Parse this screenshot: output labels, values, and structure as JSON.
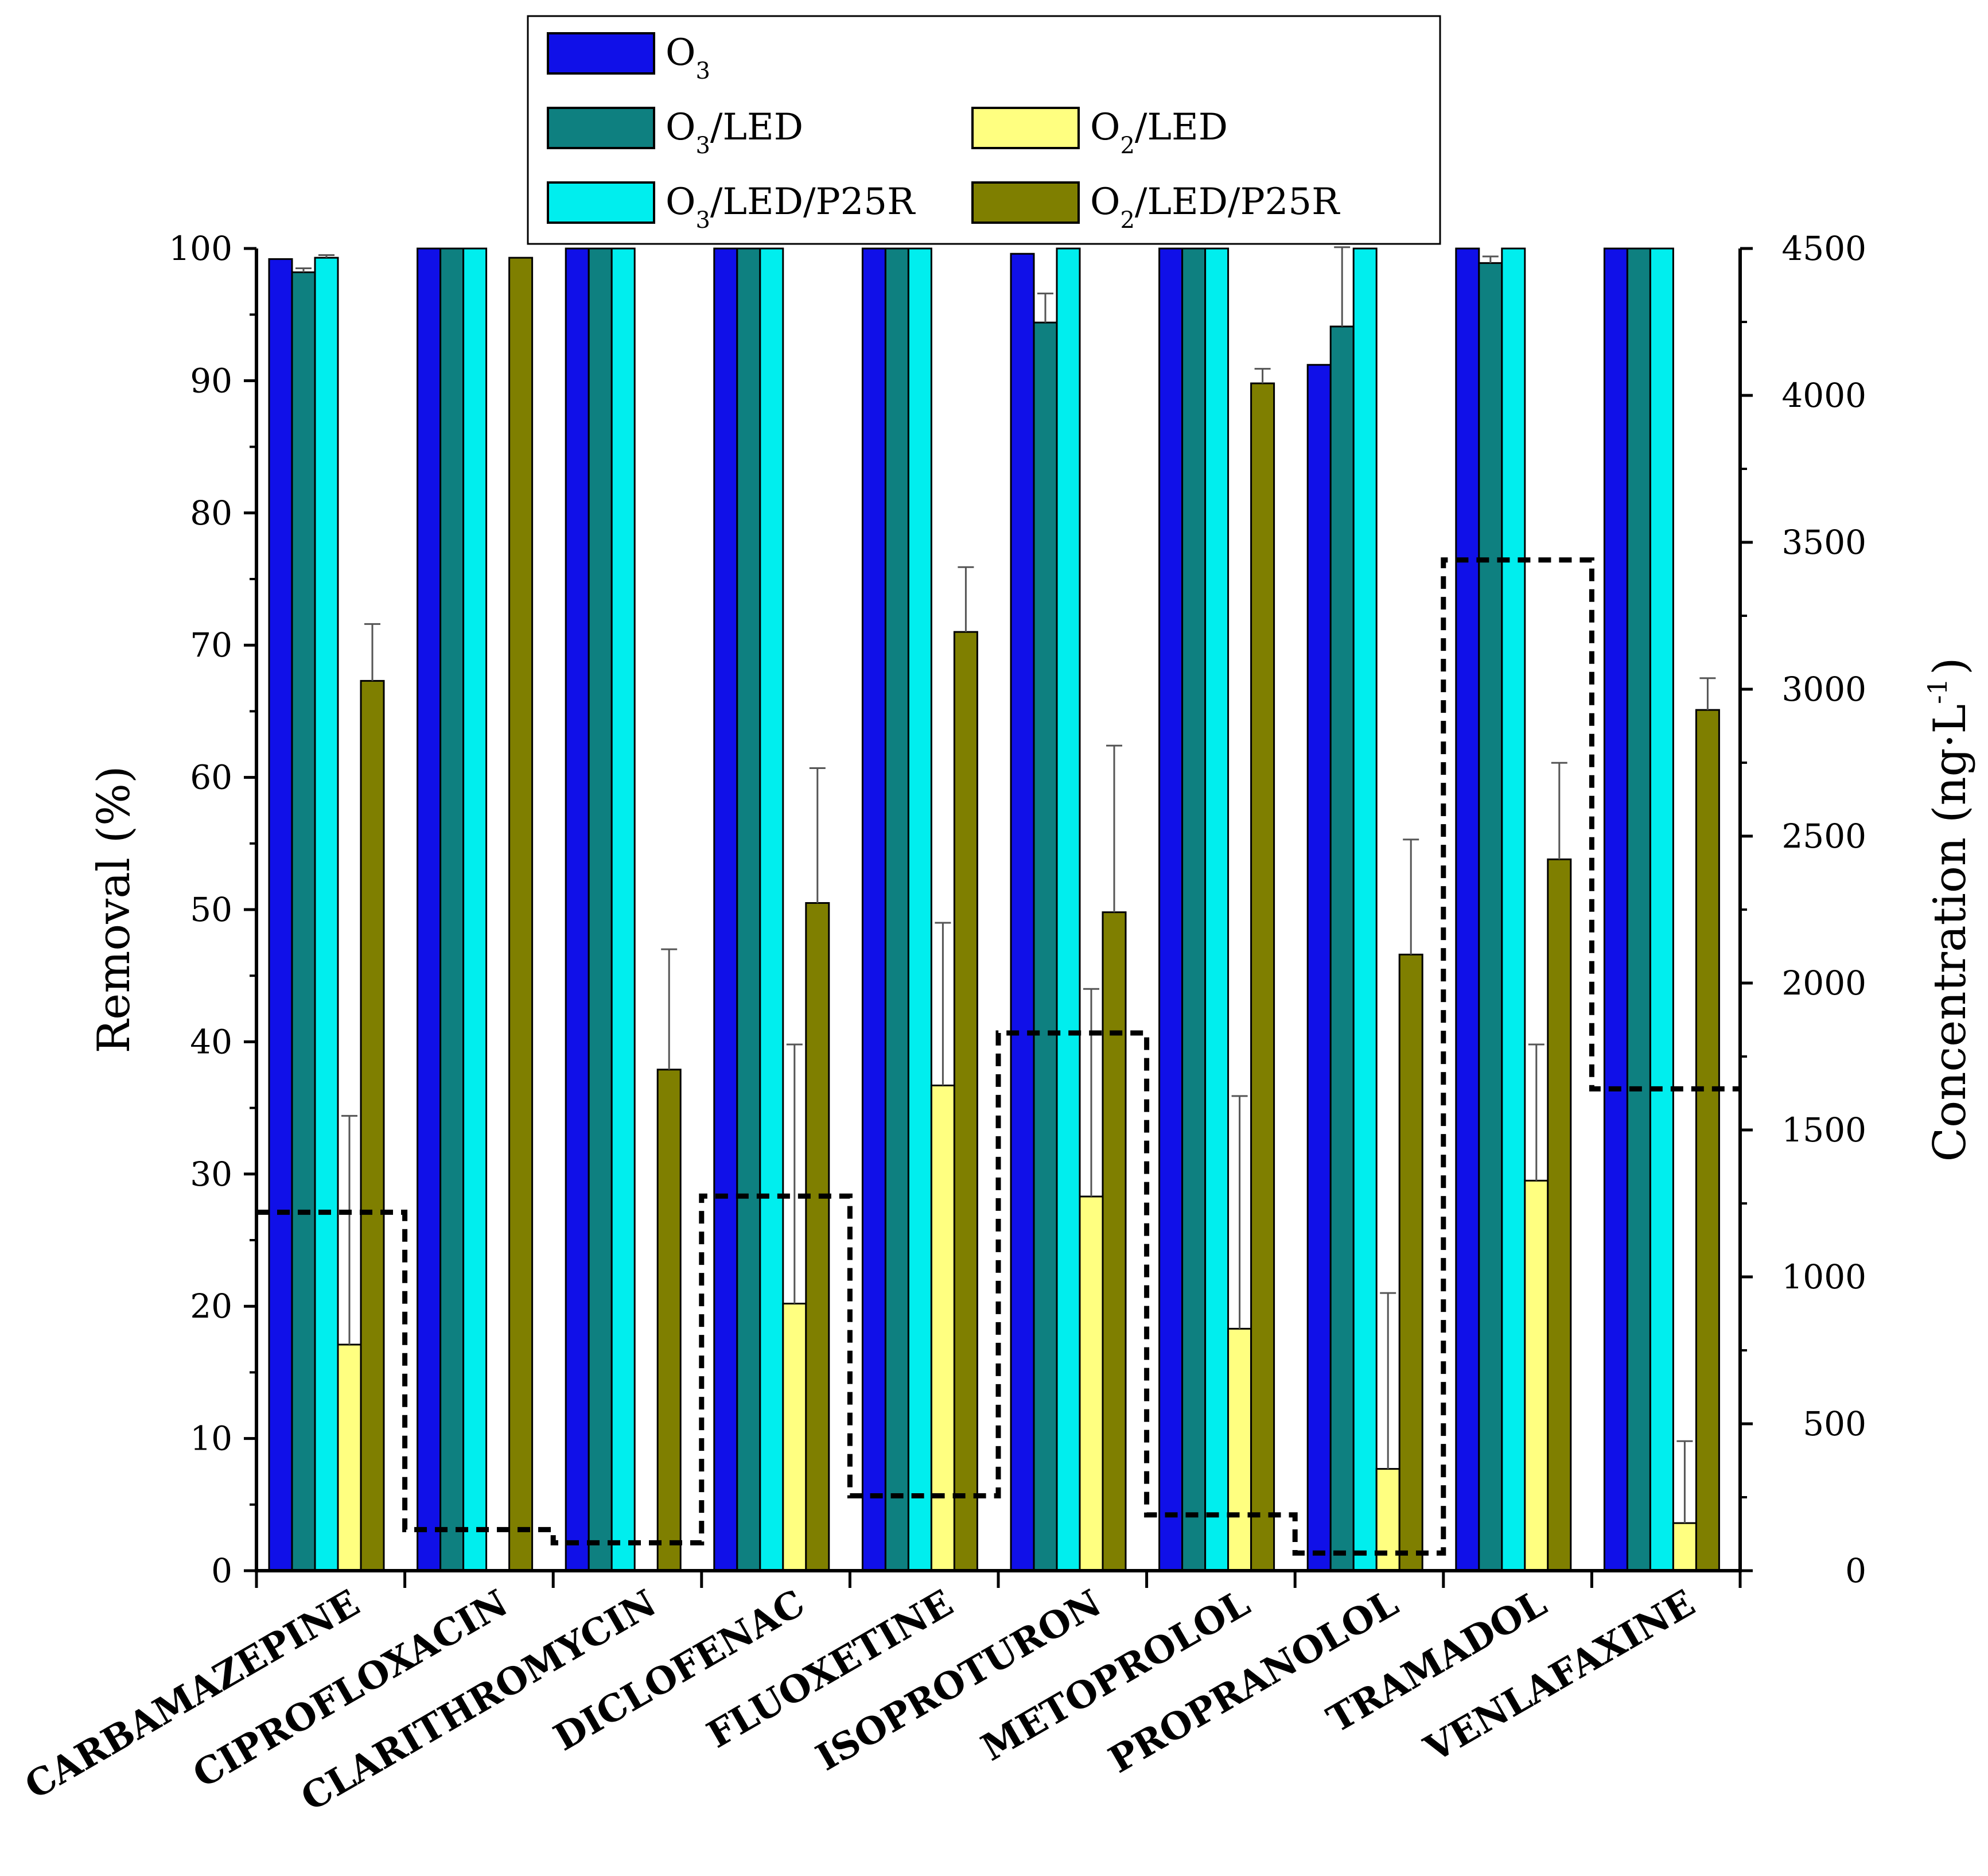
{
  "chart_data": {
    "type": "bar",
    "title": "",
    "xlabel": "",
    "ylabel": "Removal (%)",
    "y2label": "Concentration (ng·L",
    "y2label_sup": "-1",
    "y2label_close": ")",
    "ylim": [
      0,
      100
    ],
    "y2lim": [
      0,
      4500
    ],
    "yticks": [
      0,
      10,
      20,
      30,
      40,
      50,
      60,
      70,
      80,
      90,
      100
    ],
    "y2ticks": [
      0,
      500,
      1000,
      1500,
      2000,
      2500,
      3000,
      3500,
      4000,
      4500
    ],
    "categories": [
      "CARBAMAZEPINE",
      "CIPROFLOXACIN",
      "CLARITHROMYCIN",
      "DICLOFENAC",
      "FLUOXETINE",
      "ISOPROTURON",
      "METOPROLOL",
      "PROPRANOLOL",
      "TRAMADOL",
      "VENLAFAXINE"
    ],
    "series": [
      {
        "name": "O3",
        "label_main": "O",
        "label_sub": "3",
        "label_rest": "",
        "color": "#1010e8",
        "values": [
          99.2,
          100,
          100,
          100,
          100,
          99.6,
          100,
          91.2,
          100,
          100
        ],
        "errors": [
          0,
          0,
          0,
          0,
          0,
          0,
          0,
          0,
          0,
          0
        ]
      },
      {
        "name": "O3/LED",
        "label_main": "O",
        "label_sub": "3",
        "label_rest": "/LED",
        "color": "#0e8080",
        "values": [
          98.2,
          100,
          100,
          100,
          100,
          94.4,
          100,
          94.1,
          98.9,
          100
        ],
        "errors": [
          0.3,
          0,
          0,
          0,
          0,
          2.2,
          0,
          6,
          0.5,
          0
        ]
      },
      {
        "name": "O3/LED/P25R",
        "label_main": "O",
        "label_sub": "3",
        "label_rest": "/LED/P25R",
        "color": "#00eeee",
        "values": [
          99.3,
          100,
          100,
          100,
          100,
          100,
          100,
          100,
          100,
          100
        ],
        "errors": [
          0.2,
          0,
          0,
          0,
          0,
          0,
          0,
          0,
          0,
          0
        ]
      },
      {
        "name": "O2/LED",
        "label_main": "O",
        "label_sub": "2",
        "label_rest": "/LED",
        "color": "#ffff80",
        "values": [
          17.1,
          0,
          0,
          20.2,
          36.7,
          28.3,
          18.3,
          7.7,
          29.5,
          3.6
        ],
        "errors": [
          17.3,
          0,
          0,
          19.6,
          12.3,
          15.7,
          17.6,
          13.3,
          10.3,
          6.2
        ]
      },
      {
        "name": "O2/LED/P25R",
        "label_main": "O",
        "label_sub": "2",
        "label_rest": "/LED/P25R",
        "color": "#7f7f00",
        "values": [
          67.3,
          99.3,
          37.9,
          50.5,
          71.0,
          49.8,
          89.8,
          46.6,
          53.8,
          65.1
        ],
        "errors": [
          4.3,
          0,
          9.1,
          10.2,
          4.9,
          12.6,
          1.1,
          8.7,
          7.3,
          2.4
        ]
      }
    ],
    "concentration": {
      "style": "dashed step line",
      "axis": "right",
      "values": [
        1220,
        140,
        95,
        1275,
        255,
        1830,
        190,
        60,
        3440,
        1640
      ]
    },
    "legend": {
      "placement": "top"
    }
  }
}
